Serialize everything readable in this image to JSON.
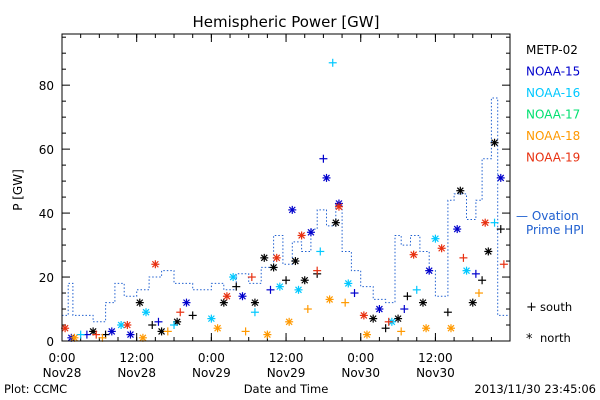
{
  "chart_data": {
    "type": "scatter",
    "title": "Hemispheric Power [GW]",
    "ylabel": "P [GW]",
    "xlabel": "Date and Time",
    "ylim": [
      0,
      96
    ],
    "yticks": [
      0,
      20,
      40,
      60,
      80
    ],
    "xlim": [
      "2013-11-28T00:00",
      "2013-11-30T23:59"
    ],
    "xticks": [
      {
        "time": "0:00",
        "date": "Nov28",
        "x": "2013-11-28T00:00"
      },
      {
        "time": "12:00",
        "date": "Nov28",
        "x": "2013-11-28T12:00"
      },
      {
        "time": "0:00",
        "date": "Nov29",
        "x": "2013-11-29T00:00"
      },
      {
        "time": "12:00",
        "date": "Nov29",
        "x": "2013-11-29T12:00"
      },
      {
        "time": "0:00",
        "date": "Nov30",
        "x": "2013-11-30T00:00"
      },
      {
        "time": "12:00",
        "date": "Nov30",
        "x": "2013-11-30T12:00"
      }
    ],
    "legend_placement": "right",
    "legend": [
      {
        "name": "METP-02",
        "color": "#000000"
      },
      {
        "name": "NOAA-15",
        "color": "#0000cc"
      },
      {
        "name": "NOAA-16",
        "color": "#00c8ff"
      },
      {
        "name": "NOAA-17",
        "color": "#00e070"
      },
      {
        "name": "NOAA-18",
        "color": "#ff9900"
      },
      {
        "name": "NOAA-19",
        "color": "#e83010"
      }
    ],
    "ovation": {
      "label_line1": "— Ovation",
      "label_line2": "Prime HPI",
      "color": "#2060d0",
      "step_points": [
        [
          "2013-11-28T00:00",
          8
        ],
        [
          "2013-11-28T01:00",
          8
        ],
        [
          "2013-11-28T01:00",
          18
        ],
        [
          "2013-11-28T01:45",
          18
        ],
        [
          "2013-11-28T01:45",
          8
        ],
        [
          "2013-11-28T05:00",
          8
        ],
        [
          "2013-11-28T05:00",
          6
        ],
        [
          "2013-11-28T07:00",
          6
        ],
        [
          "2013-11-28T07:00",
          12
        ],
        [
          "2013-11-28T08:30",
          12
        ],
        [
          "2013-11-28T08:30",
          18
        ],
        [
          "2013-11-28T10:00",
          18
        ],
        [
          "2013-11-28T10:00",
          14
        ],
        [
          "2013-11-28T12:00",
          14
        ],
        [
          "2013-11-28T12:00",
          16
        ],
        [
          "2013-11-28T14:00",
          16
        ],
        [
          "2013-11-28T14:00",
          20
        ],
        [
          "2013-11-28T16:00",
          20
        ],
        [
          "2013-11-28T16:00",
          22
        ],
        [
          "2013-11-28T18:00",
          22
        ],
        [
          "2013-11-28T18:00",
          18
        ],
        [
          "2013-11-28T21:00",
          18
        ],
        [
          "2013-11-28T21:00",
          16
        ],
        [
          "2013-11-29T00:00",
          16
        ],
        [
          "2013-11-29T00:00",
          18
        ],
        [
          "2013-11-29T02:00",
          18
        ],
        [
          "2013-11-29T02:00",
          16
        ],
        [
          "2013-11-29T04:00",
          16
        ],
        [
          "2013-11-29T04:00",
          21
        ],
        [
          "2013-11-29T06:00",
          21
        ],
        [
          "2013-11-29T06:00",
          18
        ],
        [
          "2013-11-29T08:00",
          18
        ],
        [
          "2013-11-29T08:00",
          23
        ],
        [
          "2013-11-29T10:00",
          23
        ],
        [
          "2013-11-29T10:00",
          33
        ],
        [
          "2013-11-29T11:30",
          33
        ],
        [
          "2013-11-29T11:30",
          24
        ],
        [
          "2013-11-29T13:00",
          24
        ],
        [
          "2013-11-29T13:00",
          31
        ],
        [
          "2013-11-29T14:30",
          31
        ],
        [
          "2013-11-29T14:30",
          28
        ],
        [
          "2013-11-29T16:00",
          28
        ],
        [
          "2013-11-29T16:00",
          35
        ],
        [
          "2013-11-29T17:00",
          35
        ],
        [
          "2013-11-29T17:00",
          41
        ],
        [
          "2013-11-29T18:30",
          41
        ],
        [
          "2013-11-29T18:30",
          36
        ],
        [
          "2013-11-29T20:00",
          36
        ],
        [
          "2013-11-29T20:00",
          43
        ],
        [
          "2013-11-29T21:00",
          43
        ],
        [
          "2013-11-29T21:00",
          28
        ],
        [
          "2013-11-29T22:30",
          28
        ],
        [
          "2013-11-29T22:30",
          22
        ],
        [
          "2013-11-30T00:00",
          22
        ],
        [
          "2013-11-30T00:00",
          17
        ],
        [
          "2013-11-30T02:00",
          17
        ],
        [
          "2013-11-30T02:00",
          13
        ],
        [
          "2013-11-30T04:00",
          13
        ],
        [
          "2013-11-30T04:00",
          12
        ],
        [
          "2013-11-30T05:30",
          12
        ],
        [
          "2013-11-30T05:30",
          33
        ],
        [
          "2013-11-30T06:30",
          33
        ],
        [
          "2013-11-30T06:30",
          30
        ],
        [
          "2013-11-30T08:00",
          30
        ],
        [
          "2013-11-30T08:00",
          33
        ],
        [
          "2013-11-30T09:30",
          33
        ],
        [
          "2013-11-30T09:30",
          28
        ],
        [
          "2013-11-30T11:00",
          28
        ],
        [
          "2013-11-30T11:00",
          22
        ],
        [
          "2013-11-30T12:00",
          22
        ],
        [
          "2013-11-30T12:00",
          14
        ],
        [
          "2013-11-30T14:00",
          14
        ],
        [
          "2013-11-30T14:00",
          44
        ],
        [
          "2013-11-30T15:00",
          44
        ],
        [
          "2013-11-30T15:00",
          46
        ],
        [
          "2013-11-30T17:00",
          46
        ],
        [
          "2013-11-30T17:00",
          38
        ],
        [
          "2013-11-30T18:30",
          38
        ],
        [
          "2013-11-30T18:30",
          44
        ],
        [
          "2013-11-30T19:30",
          44
        ],
        [
          "2013-11-30T19:30",
          57
        ],
        [
          "2013-11-30T21:00",
          57
        ],
        [
          "2013-11-30T21:00",
          76
        ],
        [
          "2013-11-30T22:00",
          76
        ],
        [
          "2013-11-30T22:00",
          8
        ],
        [
          "2013-11-30T23:59",
          8
        ]
      ]
    },
    "symbols_legend": {
      "south_symbol": "+",
      "south_label": "south",
      "north_symbol": "*",
      "north_label": "north"
    },
    "series": [
      {
        "name": "METP-02",
        "color": "#000000",
        "points": [
          {
            "x": "2013-11-28T05:00",
            "y": 3,
            "h": "north"
          },
          {
            "x": "2013-11-28T07:00",
            "y": 2,
            "h": "south"
          },
          {
            "x": "2013-11-28T12:30",
            "y": 12,
            "h": "north"
          },
          {
            "x": "2013-11-28T14:30",
            "y": 5,
            "h": "south"
          },
          {
            "x": "2013-11-28T16:00",
            "y": 3,
            "h": "north"
          },
          {
            "x": "2013-11-28T18:30",
            "y": 6,
            "h": "north"
          },
          {
            "x": "2013-11-28T21:00",
            "y": 8,
            "h": "south"
          },
          {
            "x": "2013-11-29T02:00",
            "y": 12,
            "h": "north"
          },
          {
            "x": "2013-11-29T04:00",
            "y": 17,
            "h": "south"
          },
          {
            "x": "2013-11-29T07:00",
            "y": 12,
            "h": "north"
          },
          {
            "x": "2013-11-29T08:30",
            "y": 26,
            "h": "north"
          },
          {
            "x": "2013-11-29T10:00",
            "y": 23,
            "h": "north"
          },
          {
            "x": "2013-11-29T12:00",
            "y": 19,
            "h": "south"
          },
          {
            "x": "2013-11-29T13:30",
            "y": 25,
            "h": "north"
          },
          {
            "x": "2013-11-29T15:00",
            "y": 19,
            "h": "north"
          },
          {
            "x": "2013-11-29T17:00",
            "y": 21,
            "h": "south"
          },
          {
            "x": "2013-11-29T20:00",
            "y": 37,
            "h": "north"
          },
          {
            "x": "2013-11-30T02:00",
            "y": 7,
            "h": "north"
          },
          {
            "x": "2013-11-30T04:00",
            "y": 4,
            "h": "south"
          },
          {
            "x": "2013-11-30T06:00",
            "y": 7,
            "h": "north"
          },
          {
            "x": "2013-11-30T07:30",
            "y": 14,
            "h": "south"
          },
          {
            "x": "2013-11-30T10:00",
            "y": 12,
            "h": "north"
          },
          {
            "x": "2013-11-30T14:00",
            "y": 9,
            "h": "south"
          },
          {
            "x": "2013-11-30T16:00",
            "y": 47,
            "h": "north"
          },
          {
            "x": "2013-11-30T18:00",
            "y": 12,
            "h": "north"
          },
          {
            "x": "2013-11-30T19:30",
            "y": 19,
            "h": "south"
          },
          {
            "x": "2013-11-30T20:30",
            "y": 28,
            "h": "north"
          },
          {
            "x": "2013-11-30T21:30",
            "y": 62,
            "h": "north"
          },
          {
            "x": "2013-11-30T22:30",
            "y": 35,
            "h": "south"
          }
        ]
      },
      {
        "name": "NOAA-15",
        "color": "#0000cc",
        "points": [
          {
            "x": "2013-11-28T01:30",
            "y": 1,
            "h": "north"
          },
          {
            "x": "2013-11-28T04:00",
            "y": 2,
            "h": "south"
          },
          {
            "x": "2013-11-28T08:00",
            "y": 3,
            "h": "north"
          },
          {
            "x": "2013-11-28T11:00",
            "y": 2,
            "h": "north"
          },
          {
            "x": "2013-11-28T15:30",
            "y": 6,
            "h": "south"
          },
          {
            "x": "2013-11-28T20:00",
            "y": 12,
            "h": "north"
          },
          {
            "x": "2013-11-29T05:00",
            "y": 14,
            "h": "north"
          },
          {
            "x": "2013-11-29T09:30",
            "y": 16,
            "h": "south"
          },
          {
            "x": "2013-11-29T13:00",
            "y": 41,
            "h": "north"
          },
          {
            "x": "2013-11-29T16:00",
            "y": 34,
            "h": "north"
          },
          {
            "x": "2013-11-29T18:00",
            "y": 57,
            "h": "south"
          },
          {
            "x": "2013-11-29T18:30",
            "y": 51,
            "h": "north"
          },
          {
            "x": "2013-11-29T20:30",
            "y": 43,
            "h": "north"
          },
          {
            "x": "2013-11-29T23:00",
            "y": 15,
            "h": "south"
          },
          {
            "x": "2013-11-30T03:00",
            "y": 10,
            "h": "north"
          },
          {
            "x": "2013-11-30T07:00",
            "y": 10,
            "h": "south"
          },
          {
            "x": "2013-11-30T11:00",
            "y": 22,
            "h": "north"
          },
          {
            "x": "2013-11-30T15:30",
            "y": 35,
            "h": "north"
          },
          {
            "x": "2013-11-30T18:30",
            "y": 21,
            "h": "south"
          },
          {
            "x": "2013-11-30T22:30",
            "y": 51,
            "h": "north"
          }
        ]
      },
      {
        "name": "NOAA-16",
        "color": "#00c8ff",
        "points": [
          {
            "x": "2013-11-28T03:00",
            "y": 2,
            "h": "south"
          },
          {
            "x": "2013-11-28T09:30",
            "y": 5,
            "h": "north"
          },
          {
            "x": "2013-11-28T13:30",
            "y": 9,
            "h": "north"
          },
          {
            "x": "2013-11-28T18:00",
            "y": 5,
            "h": "south"
          },
          {
            "x": "2013-11-29T00:00",
            "y": 7,
            "h": "north"
          },
          {
            "x": "2013-11-29T03:30",
            "y": 20,
            "h": "north"
          },
          {
            "x": "2013-11-29T07:00",
            "y": 9,
            "h": "south"
          },
          {
            "x": "2013-11-29T11:00",
            "y": 17,
            "h": "north"
          },
          {
            "x": "2013-11-29T14:00",
            "y": 16,
            "h": "north"
          },
          {
            "x": "2013-11-29T17:30",
            "y": 28,
            "h": "south"
          },
          {
            "x": "2013-11-29T19:30",
            "y": 87,
            "h": "south"
          },
          {
            "x": "2013-11-29T22:00",
            "y": 18,
            "h": "north"
          },
          {
            "x": "2013-11-30T05:00",
            "y": 6,
            "h": "north"
          },
          {
            "x": "2013-11-30T09:00",
            "y": 16,
            "h": "south"
          },
          {
            "x": "2013-11-30T12:00",
            "y": 32,
            "h": "north"
          },
          {
            "x": "2013-11-30T17:00",
            "y": 22,
            "h": "north"
          },
          {
            "x": "2013-11-30T21:30",
            "y": 37,
            "h": "south"
          }
        ]
      },
      {
        "name": "NOAA-18",
        "color": "#ff9900",
        "points": [
          {
            "x": "2013-11-28T02:00",
            "y": 1,
            "h": "north"
          },
          {
            "x": "2013-11-28T06:30",
            "y": 1,
            "h": "south"
          },
          {
            "x": "2013-11-28T13:00",
            "y": 1,
            "h": "north"
          },
          {
            "x": "2013-11-28T17:00",
            "y": 3,
            "h": "south"
          },
          {
            "x": "2013-11-29T01:00",
            "y": 4,
            "h": "north"
          },
          {
            "x": "2013-11-29T05:30",
            "y": 3,
            "h": "south"
          },
          {
            "x": "2013-11-29T09:00",
            "y": 2,
            "h": "north"
          },
          {
            "x": "2013-11-29T12:30",
            "y": 6,
            "h": "north"
          },
          {
            "x": "2013-11-29T15:30",
            "y": 10,
            "h": "south"
          },
          {
            "x": "2013-11-29T19:00",
            "y": 13,
            "h": "north"
          },
          {
            "x": "2013-11-29T21:30",
            "y": 12,
            "h": "south"
          },
          {
            "x": "2013-11-30T01:00",
            "y": 2,
            "h": "north"
          },
          {
            "x": "2013-11-30T06:30",
            "y": 3,
            "h": "south"
          },
          {
            "x": "2013-11-30T10:30",
            "y": 4,
            "h": "north"
          },
          {
            "x": "2013-11-30T14:30",
            "y": 4,
            "h": "north"
          },
          {
            "x": "2013-11-30T19:00",
            "y": 15,
            "h": "south"
          }
        ]
      },
      {
        "name": "NOAA-19",
        "color": "#e83010",
        "points": [
          {
            "x": "2013-11-28T00:30",
            "y": 4,
            "h": "north"
          },
          {
            "x": "2013-11-28T05:30",
            "y": 2,
            "h": "south"
          },
          {
            "x": "2013-11-28T10:30",
            "y": 5,
            "h": "north"
          },
          {
            "x": "2013-11-28T15:00",
            "y": 24,
            "h": "north"
          },
          {
            "x": "2013-11-28T19:00",
            "y": 9,
            "h": "south"
          },
          {
            "x": "2013-11-29T02:30",
            "y": 14,
            "h": "north"
          },
          {
            "x": "2013-11-29T06:30",
            "y": 20,
            "h": "south"
          },
          {
            "x": "2013-11-29T10:30",
            "y": 26,
            "h": "north"
          },
          {
            "x": "2013-11-29T14:30",
            "y": 33,
            "h": "north"
          },
          {
            "x": "2013-11-29T17:00",
            "y": 22,
            "h": "south"
          },
          {
            "x": "2013-11-29T20:30",
            "y": 42,
            "h": "north"
          },
          {
            "x": "2013-11-30T00:30",
            "y": 8,
            "h": "north"
          },
          {
            "x": "2013-11-30T04:30",
            "y": 6,
            "h": "south"
          },
          {
            "x": "2013-11-30T08:30",
            "y": 27,
            "h": "north"
          },
          {
            "x": "2013-11-30T13:00",
            "y": 29,
            "h": "north"
          },
          {
            "x": "2013-11-30T16:30",
            "y": 26,
            "h": "south"
          },
          {
            "x": "2013-11-30T20:00",
            "y": 37,
            "h": "north"
          },
          {
            "x": "2013-11-30T23:00",
            "y": 24,
            "h": "south"
          }
        ]
      }
    ]
  },
  "footer": {
    "plot_credit": "Plot: CCMC",
    "timestamp": "2013/11/30 23:45:06"
  }
}
